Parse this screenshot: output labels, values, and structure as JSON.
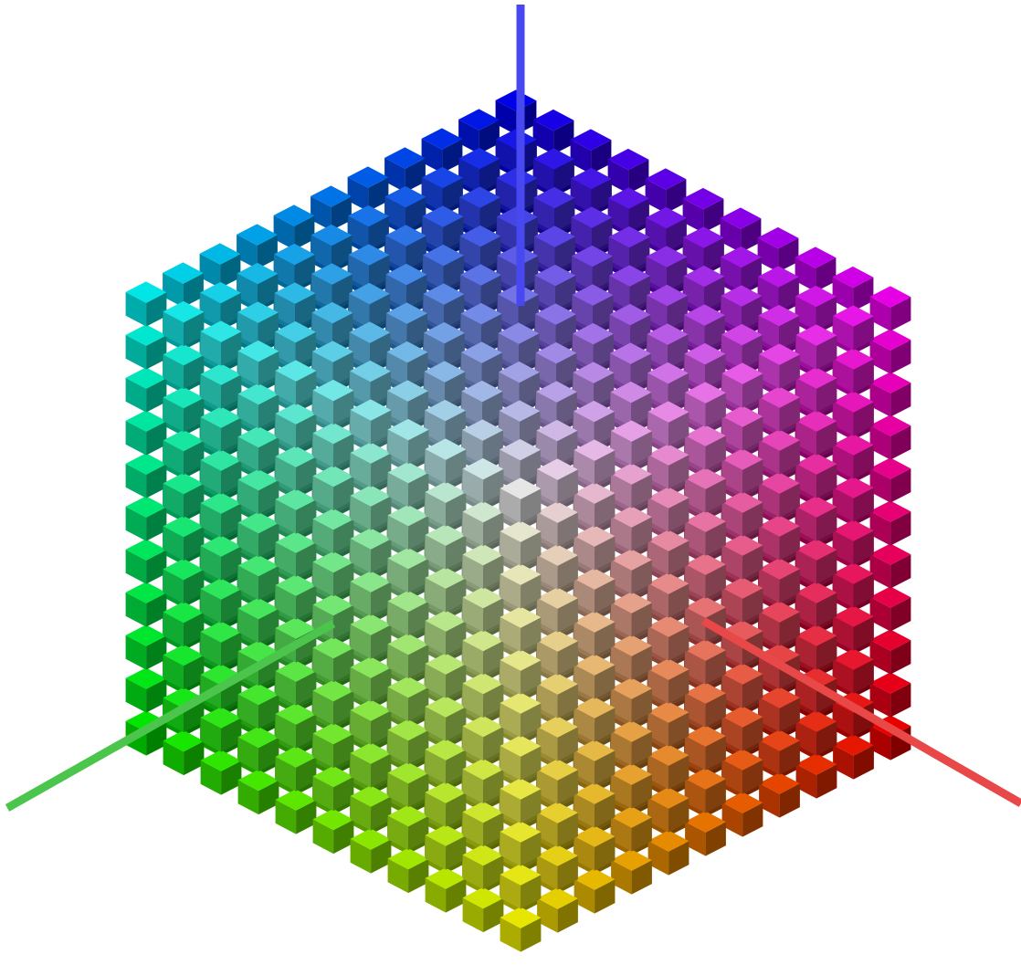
{
  "figure": {
    "kind": "rgb-color-cube",
    "background_color": "#ffffff",
    "grid_divisions": 11,
    "view": "isometric-from-white-corner"
  },
  "axes": [
    {
      "id": "red",
      "channel": "R",
      "color": "#e84848"
    },
    {
      "id": "green",
      "channel": "G",
      "color": "#4cc54c"
    },
    {
      "id": "blue",
      "channel": "B",
      "color": "#4848f0"
    }
  ],
  "corners": {
    "top_back": "#0000ff",
    "left": "#00ffff",
    "right": "#ff00ff",
    "front_center": "#ffffff",
    "bottom": "#ffff00",
    "left_lower": "#00ff00",
    "right_lower": "#ff0000"
  },
  "shading": {
    "top_face": 0.8,
    "left_face": 0.62,
    "right_face": 0.45
  },
  "cubelet_scale": 0.55
}
